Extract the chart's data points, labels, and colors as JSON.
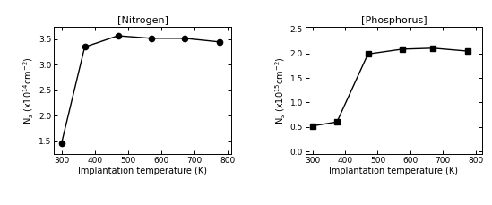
{
  "nitrogen": {
    "title": "[Nitrogen]",
    "x": [
      300,
      370,
      470,
      570,
      670,
      775
    ],
    "y": [
      1.45,
      3.35,
      3.57,
      3.52,
      3.52,
      3.45
    ],
    "xlabel": "Implantation temperature (K)",
    "ylabel": "N$_s$ (x10$^{14}$cm$^{-2}$)",
    "ylim": [
      1.25,
      3.75
    ],
    "yticks": [
      1.5,
      2.0,
      2.5,
      3.0,
      3.5
    ],
    "xlim": [
      278,
      810
    ],
    "xticks": [
      300,
      400,
      500,
      600,
      700,
      800
    ],
    "marker": "o"
  },
  "phosphorus": {
    "title": "[Phosphorus]",
    "x": [
      300,
      375,
      470,
      575,
      670,
      775
    ],
    "y": [
      0.52,
      0.6,
      1.99,
      2.09,
      2.11,
      2.05
    ],
    "xlabel": "Implantation temperature (K)",
    "ylabel": "N$_s$ (x10$^{15}$cm$^{-2}$)",
    "ylim": [
      -0.05,
      2.55
    ],
    "yticks": [
      0.0,
      0.5,
      1.0,
      1.5,
      2.0,
      2.5
    ],
    "xlim": [
      278,
      820
    ],
    "xticks": [
      300,
      400,
      500,
      600,
      700,
      800
    ],
    "marker": "s"
  },
  "line_color": "#000000",
  "marker_color": "#000000",
  "marker_size": 4.5,
  "linewidth": 1.0,
  "font_size": 7,
  "title_font_size": 8,
  "tick_font_size": 6.5
}
